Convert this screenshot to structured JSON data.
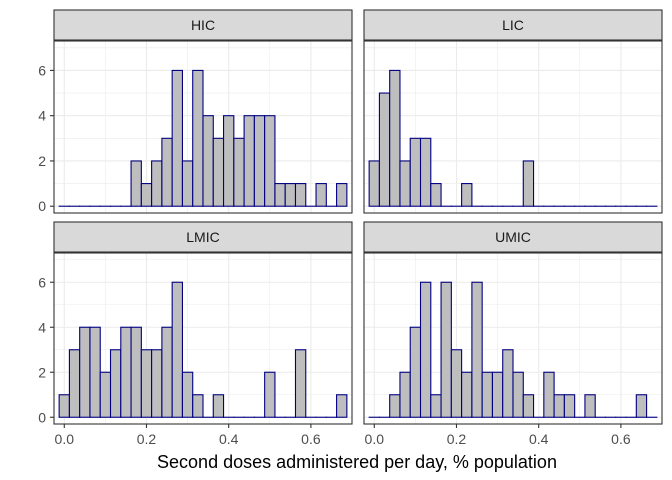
{
  "chart_data": {
    "type": "bar",
    "subtype": "faceted-histogram",
    "xlabel": "Second doses administered per day, % population",
    "ylabel": "",
    "bin_width": 0.025,
    "xlim": [
      -0.025,
      0.7
    ],
    "ylim": [
      -0.3,
      7.3
    ],
    "x_ticks": [
      0.0,
      0.2,
      0.4,
      0.6
    ],
    "x_tick_labels": [
      "0.0",
      "0.2",
      "0.4",
      "0.6"
    ],
    "y_ticks": [
      0,
      2,
      4,
      6
    ],
    "y_tick_labels": [
      "0",
      "2",
      "4",
      "6"
    ],
    "grid": true,
    "colors": {
      "bar_fill": "#bebebe",
      "bar_stroke": "#000080",
      "strip_fill": "#d9d9d9",
      "strip_border": "#333333",
      "panel_border": "#333333",
      "grid": "#ebebeb"
    },
    "facets": [
      {
        "name": "HIC",
        "bin_start": -0.0125,
        "counts": [
          0,
          0,
          0,
          0,
          0,
          0,
          0,
          2,
          1,
          2,
          3,
          6,
          2,
          6,
          4,
          3,
          4,
          3,
          4,
          4,
          4,
          1,
          1,
          1,
          0,
          1,
          0,
          1
        ]
      },
      {
        "name": "LIC",
        "bin_start": -0.0125,
        "counts": [
          2,
          5,
          6,
          2,
          3,
          3,
          1,
          0,
          0,
          1,
          0,
          0,
          0,
          0,
          0,
          2,
          0,
          0,
          0,
          0,
          0,
          0,
          0,
          0,
          0,
          0,
          0,
          0
        ]
      },
      {
        "name": "LMIC",
        "bin_start": -0.0125,
        "counts": [
          1,
          3,
          4,
          4,
          2,
          3,
          4,
          4,
          3,
          3,
          4,
          6,
          2,
          1,
          0,
          1,
          0,
          0,
          0,
          0,
          2,
          0,
          0,
          3,
          0,
          0,
          0,
          1
        ]
      },
      {
        "name": "UMIC",
        "bin_start": -0.0125,
        "counts": [
          0,
          0,
          1,
          2,
          4,
          6,
          1,
          6,
          3,
          2,
          6,
          2,
          2,
          3,
          2,
          1,
          0,
          2,
          1,
          1,
          0,
          1,
          0,
          0,
          0,
          0,
          1,
          0
        ]
      }
    ]
  }
}
